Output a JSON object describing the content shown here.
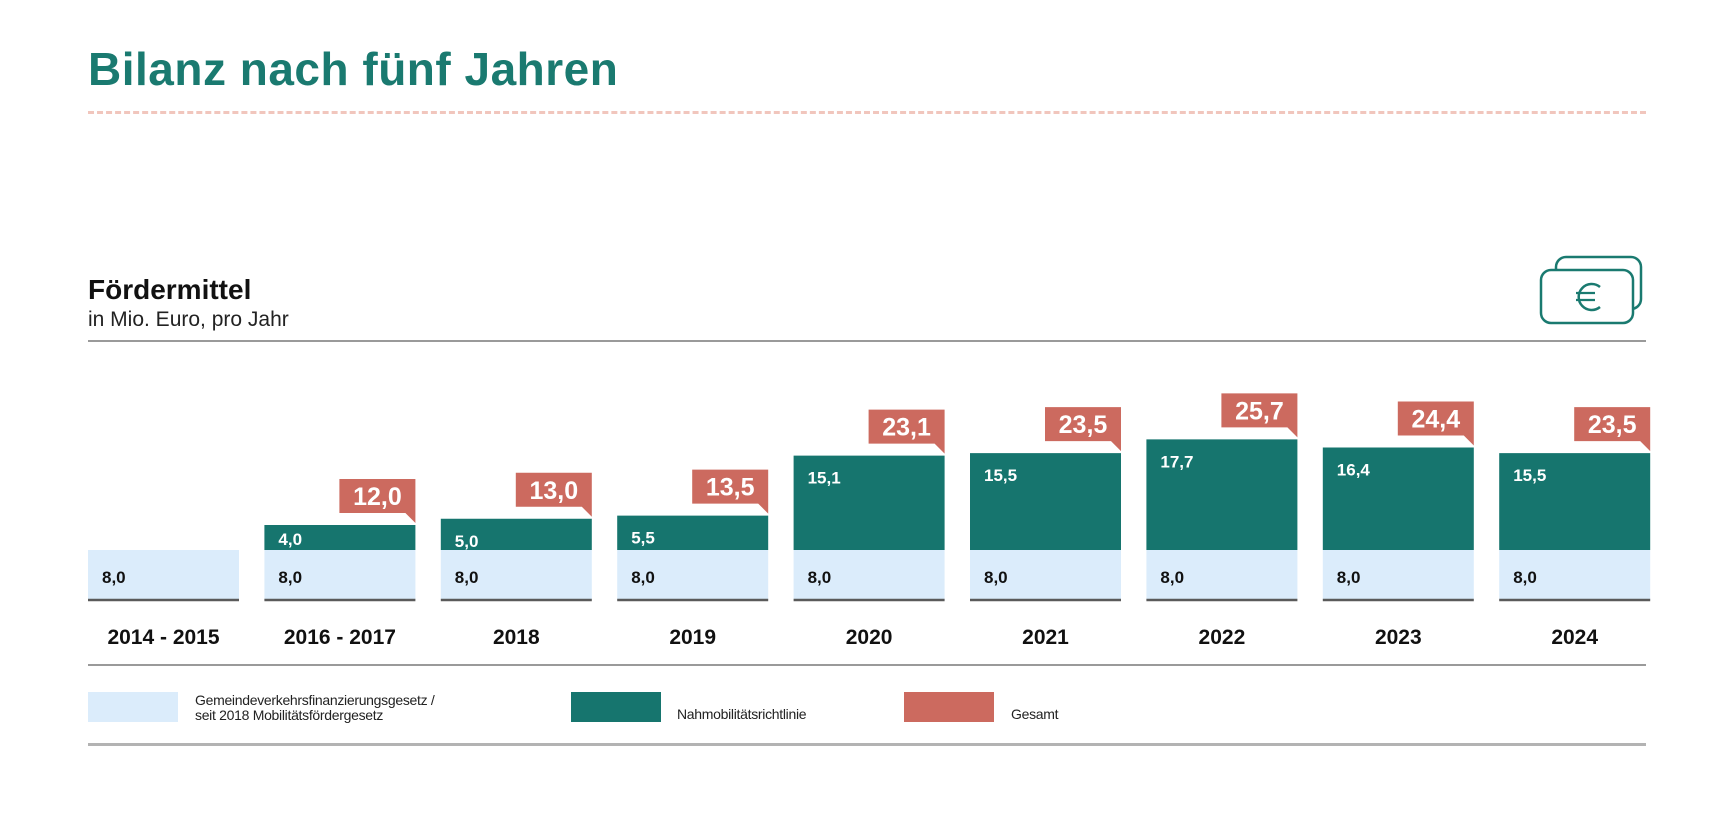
{
  "page": {
    "title": "Bilanz nach fünf Jahren"
  },
  "chart_header": {
    "title": "Fördermittel",
    "subtitle": "in Mio. Euro, pro Jahr",
    "icon": "euro-banknotes-icon"
  },
  "colors": {
    "accent": "#1a7a70",
    "base_series": "#dbecfb",
    "extra_series": "#16756e",
    "total_badge": "#cc6a5f"
  },
  "chart_data": {
    "type": "bar",
    "stacked": true,
    "title": "Fördermittel",
    "subtitle": "in Mio. Euro, pro Jahr",
    "categories": [
      "2014 - 2015",
      "2016 - 2017",
      "2018",
      "2019",
      "2020",
      "2021",
      "2022",
      "2023",
      "2024"
    ],
    "series": [
      {
        "name": "Gemeindeverkehrsfinanzierungsgesetz / seit 2018 Mobilitätsfördergesetz",
        "values": [
          8.0,
          8.0,
          8.0,
          8.0,
          8.0,
          8.0,
          8.0,
          8.0,
          8.0
        ],
        "labels": [
          "8,0",
          "8,0",
          "8,0",
          "8,0",
          "8,0",
          "8,0",
          "8,0",
          "8,0",
          "8,0"
        ]
      },
      {
        "name": "Nahmobilitätsrichtlinie",
        "values": [
          null,
          4.0,
          5.0,
          5.5,
          15.1,
          15.5,
          17.7,
          16.4,
          15.5
        ],
        "labels": [
          "",
          "4,0",
          "5,0",
          "5,5",
          "15,1",
          "15,5",
          "17,7",
          "16,4",
          "15,5"
        ]
      }
    ],
    "totals": {
      "name": "Gesamt",
      "values": [
        null,
        12.0,
        13.0,
        13.5,
        23.1,
        23.5,
        25.7,
        24.4,
        23.5
      ],
      "labels": [
        "",
        "12,0",
        "13,0",
        "13,5",
        "23,1",
        "23,5",
        "25,7",
        "24,4",
        "23,5"
      ]
    },
    "legend": [
      {
        "line1": "Gemeindeverkehrsfinanzierungsgesetz /",
        "line2": "seit 2018 Mobilitätsfördergesetz"
      },
      {
        "line1": "Nahmobilitätsrichtlinie"
      },
      {
        "line1": "Gesamt"
      }
    ],
    "legend_position": "bottom",
    "grid": false
  }
}
